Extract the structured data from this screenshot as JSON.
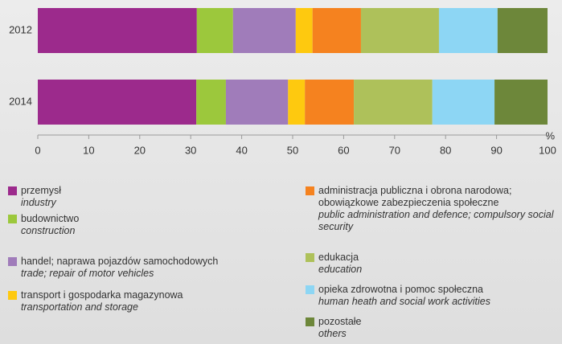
{
  "chart_data": {
    "type": "stacked_bar_horizontal",
    "categories": [
      "2012",
      "2014"
    ],
    "x_label": "%",
    "xlim": [
      0,
      100
    ],
    "xticks": [
      0,
      10,
      20,
      30,
      40,
      50,
      60,
      70,
      80,
      90,
      100
    ],
    "series": [
      {
        "name": "przemysł",
        "name_en": "industry",
        "color": "#9c2a8c",
        "values": [
          31.2,
          31.1
        ]
      },
      {
        "name": "budownictwo",
        "name_en": "construction",
        "color": "#9cc83c",
        "values": [
          7.1,
          5.8
        ]
      },
      {
        "name": "handel; naprawa pojazdów samochodowych",
        "name_en": "trade; repair of motor vehicles",
        "color": "#a07cba",
        "values": [
          12.3,
          12.2
        ]
      },
      {
        "name": "transport i gospodarka magazynowa",
        "name_en": "transportation and storage",
        "color": "#fec90f",
        "values": [
          3.3,
          3.3
        ]
      },
      {
        "name": "administracja publiczna i obrona narodowa; obowiązkowe zabezpieczenia społeczne",
        "name_en": "public administration and defence; compulsory social security",
        "color": "#f5821f",
        "values": [
          9.5,
          9.6
        ]
      },
      {
        "name": "edukacja",
        "name_en": "education",
        "color": "#aec15a",
        "values": [
          15.3,
          15.4
        ]
      },
      {
        "name": "opieka zdrowotna i pomoc społeczna",
        "name_en": "human heath and social work activities",
        "color": "#8dd6f4",
        "values": [
          11.5,
          12.2
        ]
      },
      {
        "name": "pozostałe",
        "name_en": "others",
        "color": "#6d873a",
        "values": [
          9.8,
          10.4
        ]
      }
    ]
  }
}
